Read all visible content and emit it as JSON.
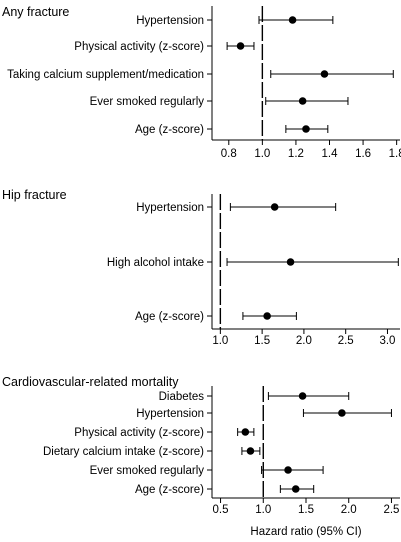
{
  "chart_data": [
    {
      "type": "forest",
      "title": "Any fracture",
      "xlim": [
        0.7,
        1.82
      ],
      "xticks": [
        0.8,
        1.0,
        1.2,
        1.4,
        1.6,
        1.8
      ],
      "xtick_labels": [
        "0.8",
        "1.0",
        "1.2",
        "1.4",
        "1.6",
        "1.8"
      ],
      "reference_line": 1.0,
      "xlabel": "",
      "grid": false,
      "rows": [
        {
          "label": "Hypertension",
          "estimate": 1.18,
          "lower": 0.98,
          "upper": 1.42
        },
        {
          "label": "Physical activity (z-score)",
          "estimate": 0.87,
          "lower": 0.79,
          "upper": 0.95
        },
        {
          "label": "Taking calcium supplement/medication",
          "estimate": 1.37,
          "lower": 1.05,
          "upper": 1.78
        },
        {
          "label": "Ever smoked regularly",
          "estimate": 1.24,
          "lower": 1.02,
          "upper": 1.51
        },
        {
          "label": "Age (z-score)",
          "estimate": 1.26,
          "lower": 1.14,
          "upper": 1.39
        }
      ]
    },
    {
      "type": "forest",
      "title": "Hip fracture",
      "xlim": [
        0.9,
        3.15
      ],
      "xticks": [
        1.0,
        1.5,
        2.0,
        2.5,
        3.0
      ],
      "xtick_labels": [
        "1.0",
        "1.5",
        "2.0",
        "2.5",
        "3.0"
      ],
      "reference_line": 1.0,
      "xlabel": "",
      "grid": false,
      "rows": [
        {
          "label": "Hypertension",
          "estimate": 1.65,
          "lower": 1.12,
          "upper": 2.38
        },
        {
          "label": "High alcohol intake",
          "estimate": 1.84,
          "lower": 1.08,
          "upper": 3.13
        },
        {
          "label": "Age (z-score)",
          "estimate": 1.56,
          "lower": 1.27,
          "upper": 1.91
        }
      ]
    },
    {
      "type": "forest",
      "title": "Cardiovascular-related mortality",
      "xlim": [
        0.4,
        2.6
      ],
      "xticks": [
        0.5,
        1.0,
        1.5,
        2.0,
        2.5
      ],
      "xtick_labels": [
        "0.5",
        "1.0",
        "1.5",
        "2.0",
        "2.5"
      ],
      "reference_line": 1.0,
      "xlabel": "Hazard ratio (95% CI)",
      "grid": false,
      "rows": [
        {
          "label": "Diabetes",
          "estimate": 1.46,
          "lower": 1.06,
          "upper": 2.0
        },
        {
          "label": "Hypertension",
          "estimate": 1.92,
          "lower": 1.47,
          "upper": 2.5
        },
        {
          "label": "Physical activity (z-score)",
          "estimate": 0.79,
          "lower": 0.7,
          "upper": 0.89
        },
        {
          "label": "Dietary calcium intake (z-score)",
          "estimate": 0.85,
          "lower": 0.75,
          "upper": 0.96
        },
        {
          "label": "Ever smoked regularly",
          "estimate": 1.29,
          "lower": 0.98,
          "upper": 1.7
        },
        {
          "label": "Age (z-score)",
          "estimate": 1.38,
          "lower": 1.2,
          "upper": 1.59
        }
      ]
    }
  ]
}
